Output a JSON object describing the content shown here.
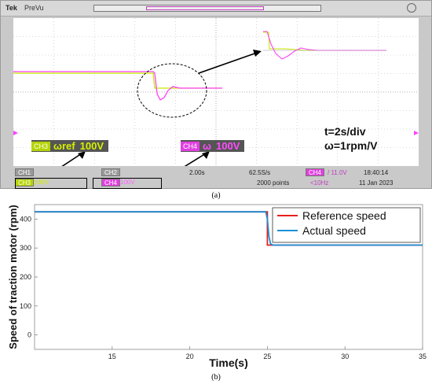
{
  "scope": {
    "brand": "Tek",
    "mode": "PreVu",
    "stat_timebase": "t=2s/div",
    "stat_scale": "ω=1rpm/V",
    "ch3_legend": {
      "tag": "CH3",
      "symbol": "ωref",
      "value": "100V"
    },
    "ch4_legend": {
      "tag": "CH4",
      "symbol": "ω",
      "value": "100V"
    },
    "bottom": {
      "ch1": "CH1",
      "ch2": "CH2",
      "ch3": "CH3",
      "ch3_scale": "100V",
      "ch4": "CH4",
      "ch4_scale": "100V",
      "timebase": "2.00s",
      "sample_rate": "62.5S/s",
      "points": "2000 points",
      "trigger_ch": "CH4",
      "trigger_level": "/ 11.0V",
      "trigger_freq": "<10Hz",
      "time": "18:40:14",
      "date": "11 Jan 2023"
    },
    "colors": {
      "ch3": "#c8e600",
      "ch4": "#ff40ff",
      "screen": "#ffffff"
    }
  },
  "caption_a": "(a)",
  "caption_b": "(b)",
  "chart_data": {
    "type": "line",
    "xlabel": "Time(s)",
    "ylabel": "Speed of traction motor (rpm)",
    "xlim": [
      10,
      35
    ],
    "ylim": [
      -50,
      450
    ],
    "xticks": [
      15,
      20,
      25,
      30,
      35
    ],
    "yticks": [
      0,
      100,
      200,
      300,
      400
    ],
    "grid": false,
    "legend_position": "top-right",
    "series": [
      {
        "name": "Reference speed",
        "color": "#e8211d",
        "x": [
          10,
          25,
          25,
          35
        ],
        "y": [
          425,
          425,
          310,
          310
        ]
      },
      {
        "name": "Actual speed",
        "color": "#1a8fd8",
        "x": [
          10,
          24.9,
          25.0,
          25.1,
          25.2,
          25.35,
          35
        ],
        "y": [
          425,
          425,
          400,
          340,
          315,
          310,
          310
        ]
      }
    ]
  }
}
